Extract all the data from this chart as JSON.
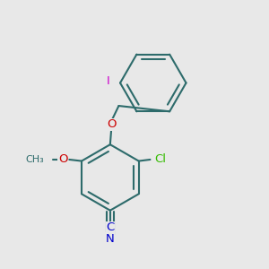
{
  "background_color": "#e8e8e8",
  "bond_color": "#2d6b6b",
  "bond_width": 1.5,
  "dbo": 0.018,
  "label_I": {
    "text": "I",
    "color": "#cc00cc",
    "fontsize": 9.5
  },
  "label_O_ether": {
    "text": "O",
    "color": "#cc0000",
    "fontsize": 9.5
  },
  "label_O_methoxy": {
    "text": "O",
    "color": "#cc0000",
    "fontsize": 9.5
  },
  "label_Cl": {
    "text": "Cl",
    "color": "#33bb00",
    "fontsize": 9.5
  },
  "label_C": {
    "text": "C",
    "color": "#0000cc",
    "fontsize": 9.5
  },
  "label_N": {
    "text": "N",
    "color": "#0000cc",
    "fontsize": 9.5
  },
  "figsize": [
    3.0,
    3.0
  ],
  "dpi": 100
}
